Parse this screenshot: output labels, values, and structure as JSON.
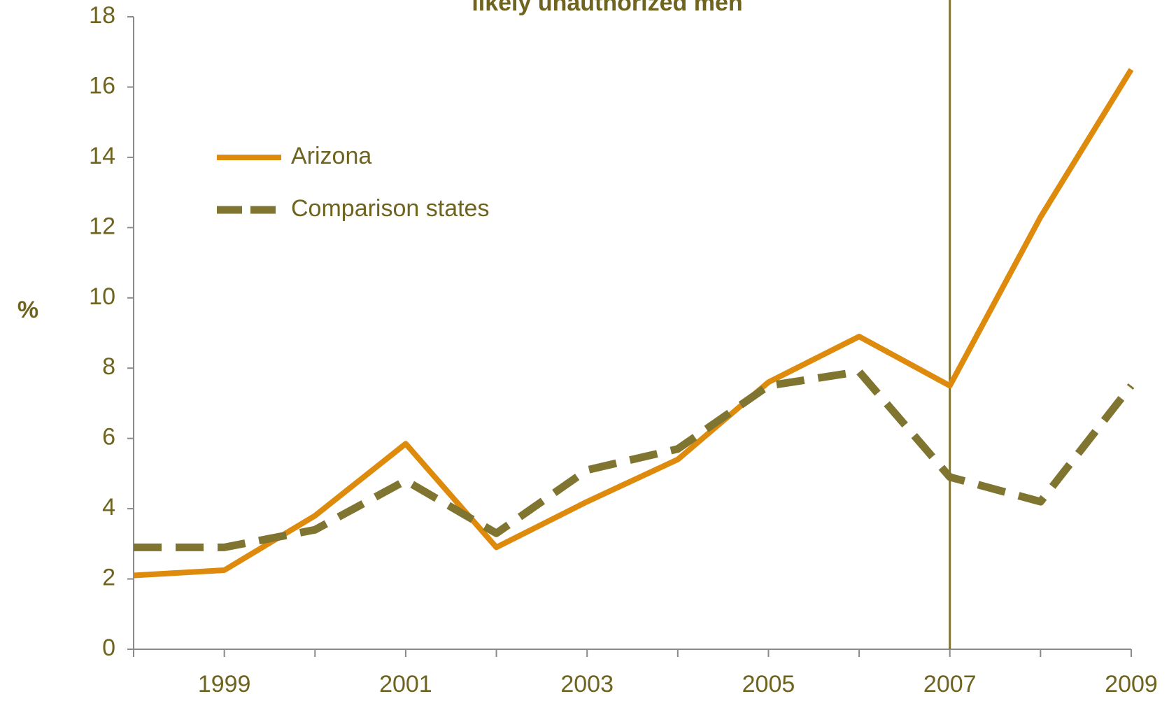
{
  "chart_data": {
    "type": "line",
    "title": "likely unauthorized men",
    "y_label": "%",
    "x": [
      1998,
      1999,
      2000,
      2001,
      2002,
      2003,
      2004,
      2005,
      2006,
      2007,
      2008,
      2009
    ],
    "series": [
      {
        "name": "Arizona",
        "color": "#dd8a0d",
        "dashed": false,
        "values": [
          2.1,
          2.25,
          3.8,
          5.85,
          2.9,
          4.2,
          5.4,
          7.6,
          8.9,
          7.5,
          12.3,
          16.5
        ]
      },
      {
        "name": "Comparison states",
        "color": "#7f7430",
        "dashed": true,
        "values": [
          2.9,
          2.9,
          3.4,
          4.8,
          3.3,
          5.1,
          5.7,
          7.5,
          7.9,
          4.9,
          4.2,
          7.5
        ]
      }
    ],
    "xlim": [
      1998,
      2009
    ],
    "xticks": [
      1999,
      2001,
      2003,
      2005,
      2007,
      2009
    ],
    "xminorticks": [
      1998,
      2000,
      2002,
      2004,
      2006,
      2008
    ],
    "ylim": [
      0,
      18
    ],
    "yticks": [
      0,
      2,
      4,
      6,
      8,
      10,
      12,
      14,
      16,
      18
    ],
    "vline": 2007,
    "vline_color": "#7f7430",
    "legend": "upper left"
  }
}
